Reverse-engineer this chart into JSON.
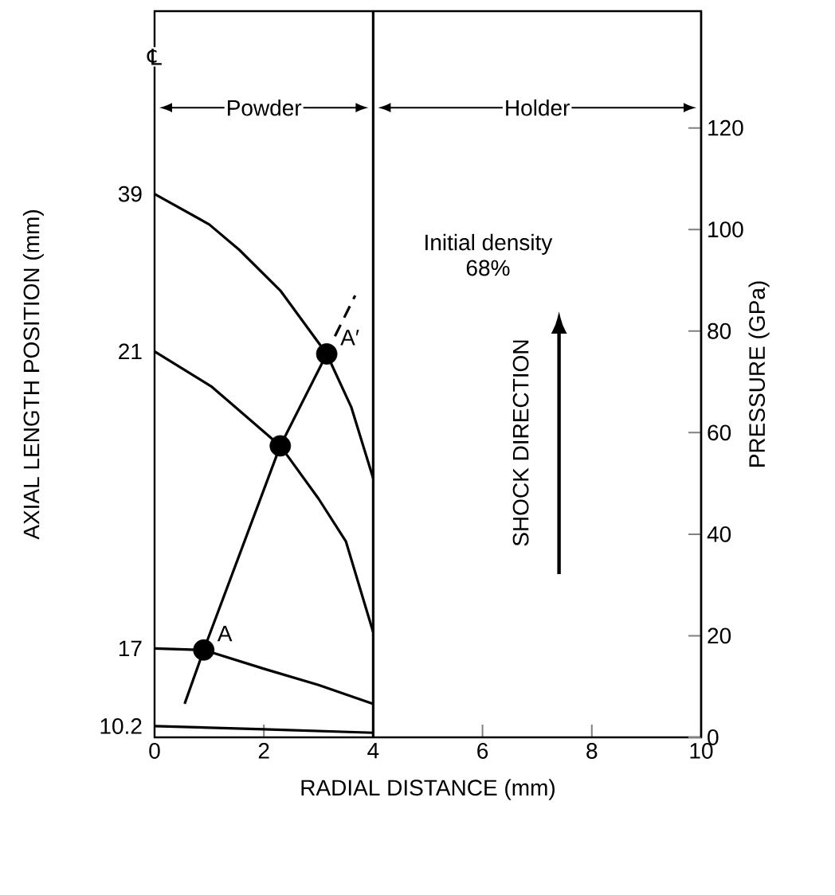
{
  "chart_data": {
    "type": "line",
    "xlabel": "RADIAL DISTANCE  (mm)",
    "ylabel": "AXIAL LENGTH POSITION (mm)",
    "y2label": "PRESSURE (GPa)",
    "xlim": [
      0,
      10
    ],
    "xticks": [
      0,
      2,
      4,
      6,
      8,
      10
    ],
    "y2lim": [
      0,
      143
    ],
    "y2ticks": [
      0,
      20,
      40,
      60,
      80,
      100,
      120
    ],
    "legend": false,
    "grid": false,
    "marker": "none",
    "line_style": "solid",
    "series": [
      {
        "axis": "y2",
        "color": "#000000",
        "x": [
          0,
          1,
          1.55,
          2.3,
          3.15,
          3.6,
          4
        ],
        "values": [
          107,
          101,
          96,
          88,
          75.5,
          65,
          51
        ]
      },
      {
        "axis": "y2",
        "color": "#000000",
        "x": [
          0,
          1.05,
          2.3,
          3,
          3.5,
          4
        ],
        "values": [
          76,
          69,
          57.4,
          47,
          38.6,
          20.7
        ]
      },
      {
        "axis": "y2",
        "color": "#000000",
        "x": [
          0,
          0.9,
          2,
          3,
          4
        ],
        "values": [
          17.5,
          17.2,
          13.5,
          10.3,
          6.6
        ]
      },
      {
        "axis": "y2",
        "color": "#000000",
        "x": [
          0,
          2,
          4
        ],
        "values": [
          2.2,
          1.6,
          0.9
        ]
      },
      {
        "axis": "y2",
        "color": "#000000",
        "x": [
          0.55,
          0.9,
          2.3,
          3.15
        ],
        "values": [
          6.6,
          17.2,
          57.4,
          75.5
        ]
      },
      {
        "axis": "y2",
        "color": "#000000",
        "line_style": "dashed",
        "x": [
          3.3,
          3.67
        ],
        "values": [
          79,
          87
        ]
      },
      {
        "type": "scatter",
        "axis": "y2",
        "color": "#000000",
        "marker": "circle",
        "x": [
          0.9,
          2.3,
          3.15
        ],
        "values": [
          17.2,
          57.4,
          75.5
        ]
      }
    ],
    "ref_lines": [
      {
        "axis": "x",
        "value": 4,
        "color": "#000000"
      }
    ],
    "annotations": [
      "℄",
      "Powder",
      "Holder",
      "Initial density 68%",
      "SHOCK DIRECTION",
      "A",
      "A′",
      "39",
      "21",
      "17",
      "10.2"
    ]
  }
}
